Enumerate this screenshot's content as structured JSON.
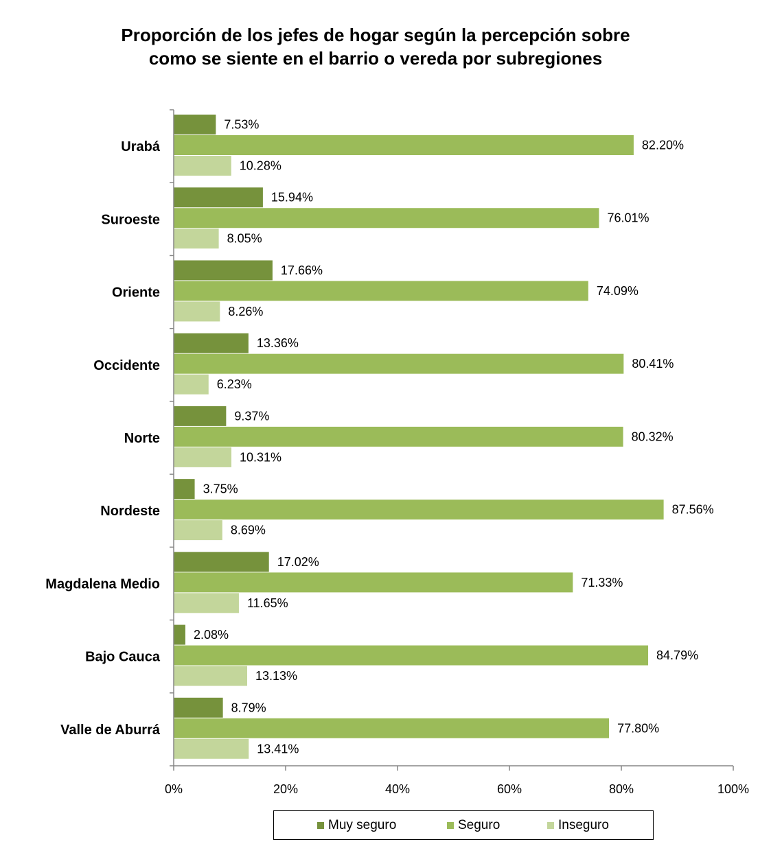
{
  "chart_data": {
    "type": "bar",
    "orientation": "horizontal",
    "title_lines": [
      "Proporción de los jefes de hogar  según la percepción sobre",
      "como se siente en el barrio o vereda por subregiones"
    ],
    "categories": [
      "Urabá",
      "Suroeste",
      "Oriente",
      "Occidente",
      "Norte",
      "Nordeste",
      "Magdalena Medio",
      "Bajo Cauca",
      "Valle de Aburrá"
    ],
    "series": [
      {
        "name": "Muy seguro",
        "color": "#76923c",
        "values": [
          7.53,
          15.94,
          17.66,
          13.36,
          9.37,
          3.75,
          17.02,
          2.08,
          8.79
        ],
        "labels": [
          "7.53%",
          "15.94%",
          "17.66%",
          "13.36%",
          "9.37%",
          "3.75%",
          "17.02%",
          "2.08%",
          "8.79%"
        ]
      },
      {
        "name": "Seguro",
        "color": "#9bbb59",
        "values": [
          82.2,
          76.01,
          74.09,
          80.41,
          80.32,
          87.56,
          71.33,
          84.79,
          77.8
        ],
        "labels": [
          "82.20%",
          "76.01%",
          "74.09%",
          "80.41%",
          "80.32%",
          "87.56%",
          "71.33%",
          "84.79%",
          "77.80%"
        ]
      },
      {
        "name": "Inseguro",
        "color": "#c3d69b",
        "values": [
          10.28,
          8.05,
          8.26,
          6.23,
          10.31,
          8.69,
          11.65,
          13.13,
          13.41
        ],
        "labels": [
          "10.28%",
          "8.05%",
          "8.26%",
          "6.23%",
          "10.31%",
          "8.69%",
          "11.65%",
          "13.13%",
          "13.41%"
        ]
      }
    ],
    "xlim": [
      0,
      100
    ],
    "xticks": [
      "0%",
      "20%",
      "40%",
      "60%",
      "80%",
      "100%"
    ],
    "grid": false,
    "legend_position": "bottom"
  }
}
